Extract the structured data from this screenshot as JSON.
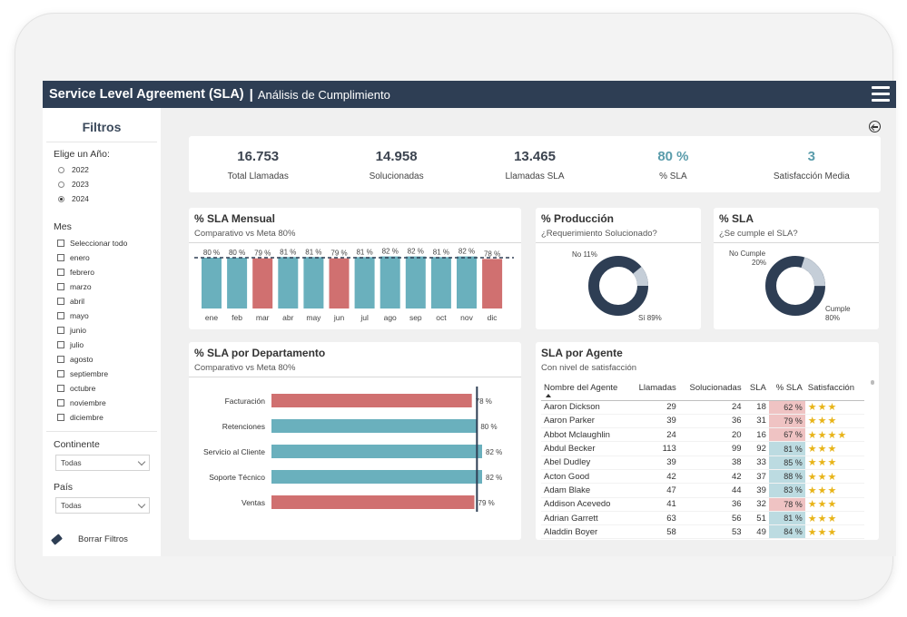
{
  "header": {
    "title": "Service Level Agreement (SLA)",
    "separator": "|",
    "subtitle": "Análisis de Cumplimiento",
    "menu_icon": "hamburger-menu-icon"
  },
  "sidebar": {
    "title": "Filtros",
    "year_label": "Elige un Año:",
    "years": [
      {
        "label": "2022",
        "selected": false
      },
      {
        "label": "2023",
        "selected": false
      },
      {
        "label": "2024",
        "selected": true
      }
    ],
    "month_label": "Mes",
    "months": [
      "Seleccionar todo",
      "enero",
      "febrero",
      "marzo",
      "abril",
      "mayo",
      "junio",
      "julio",
      "agosto",
      "septiembre",
      "octubre",
      "noviembre",
      "diciembre"
    ],
    "continent_label": "Continente",
    "continent_value": "Todas",
    "country_label": "País",
    "country_value": "Todas",
    "clear_label": "Borrar Filtros",
    "clear_icon": "eraser-icon"
  },
  "back_icon": "back-arrow-icon",
  "kpis": [
    {
      "value": "16.753",
      "label": "Total Llamadas"
    },
    {
      "value": "14.958",
      "label": "Solucionadas"
    },
    {
      "value": "13.465",
      "label": "Llamadas SLA"
    },
    {
      "value": "80 %",
      "label": "% SLA"
    },
    {
      "value": "3",
      "label": "Satisfacción Media"
    }
  ],
  "colors": {
    "header": "#2e3e54",
    "teal": "#6ab0bd",
    "red": "#d07070",
    "donut_dark": "#2e3e54",
    "donut_light": "#c5ced8",
    "star": "#e8b419",
    "kpi_accent": "#5a9cab"
  },
  "monthly": {
    "title": "% SLA Mensual",
    "subtitle": "Comparativo vs Meta 80%"
  },
  "production": {
    "title": "% Producción",
    "subtitle": "¿Requerimiento Solucionado?",
    "label_no": "No 11%",
    "label_si": "Sí 89%"
  },
  "sla_donut": {
    "title": "% SLA",
    "subtitle": "¿Se cumple el SLA?",
    "label_no_1": "No Cumple",
    "label_no_2": "20%",
    "label_si_1": "Cumple",
    "label_si_2": "80%"
  },
  "department": {
    "title": "% SLA por Departamento",
    "subtitle": "Comparativo vs Meta 80%"
  },
  "agents": {
    "title": "SLA por Agente",
    "subtitle": "Con nivel de satisfacción",
    "columns": [
      "Nombre del Agente",
      "Llamadas",
      "Solucionadas",
      "SLA",
      "% SLA",
      "Satisfacción"
    ],
    "rows": [
      {
        "name": "Aaron Dickson",
        "calls": "29",
        "solved": "24",
        "sla": "18",
        "pct": "62 %",
        "stars": 3
      },
      {
        "name": "Aaron Parker",
        "calls": "39",
        "solved": "36",
        "sla": "31",
        "pct": "79 %",
        "stars": 3
      },
      {
        "name": "Abbot Mclaughlin",
        "calls": "24",
        "solved": "20",
        "sla": "16",
        "pct": "67 %",
        "stars": 4
      },
      {
        "name": "Abdul Becker",
        "calls": "113",
        "solved": "99",
        "sla": "92",
        "pct": "81 %",
        "stars": 3
      },
      {
        "name": "Abel Dudley",
        "calls": "39",
        "solved": "38",
        "sla": "33",
        "pct": "85 %",
        "stars": 3
      },
      {
        "name": "Acton Good",
        "calls": "42",
        "solved": "42",
        "sla": "37",
        "pct": "88 %",
        "stars": 3
      },
      {
        "name": "Adam Blake",
        "calls": "47",
        "solved": "44",
        "sla": "39",
        "pct": "83 %",
        "stars": 3
      },
      {
        "name": "Addison Acevedo",
        "calls": "41",
        "solved": "36",
        "sla": "32",
        "pct": "78 %",
        "stars": 3
      },
      {
        "name": "Adrian Garrett",
        "calls": "63",
        "solved": "56",
        "sla": "51",
        "pct": "81 %",
        "stars": 3
      },
      {
        "name": "Aladdin Boyer",
        "calls": "58",
        "solved": "53",
        "sla": "49",
        "pct": "84 %",
        "stars": 3
      }
    ]
  },
  "chart_data": [
    {
      "type": "bar",
      "title": "% SLA Mensual",
      "categories": [
        "ene",
        "feb",
        "mar",
        "abr",
        "may",
        "jun",
        "jul",
        "ago",
        "sep",
        "oct",
        "nov",
        "dic"
      ],
      "values": [
        80,
        80,
        79,
        81,
        81,
        79,
        81,
        82,
        82,
        81,
        82,
        78
      ],
      "labels": [
        "80 %",
        "80 %",
        "79 %",
        "81 %",
        "81 %",
        "79 %",
        "81 %",
        "82 %",
        "82 %",
        "81 %",
        "82 %",
        "78 %"
      ],
      "target": 80,
      "ylim": [
        0,
        90
      ]
    },
    {
      "type": "pie",
      "title": "% Producción",
      "categories": [
        "No",
        "Sí"
      ],
      "values": [
        11,
        89
      ]
    },
    {
      "type": "pie",
      "title": "% SLA",
      "categories": [
        "No Cumple",
        "Cumple"
      ],
      "values": [
        20,
        80
      ]
    },
    {
      "type": "bar",
      "orientation": "horizontal",
      "title": "% SLA por Departamento",
      "categories": [
        "Facturación",
        "Retenciones",
        "Servicio al Cliente",
        "Soporte Técnico",
        "Ventas"
      ],
      "values": [
        78,
        80,
        82,
        82,
        79
      ],
      "labels": [
        "78 %",
        "80 %",
        "82 %",
        "82 %",
        "79 %"
      ],
      "target": 80,
      "xlim": [
        0,
        82
      ]
    }
  ]
}
